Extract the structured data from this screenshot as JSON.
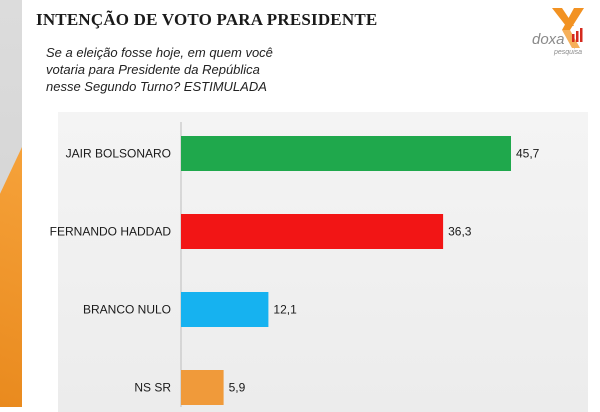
{
  "header": {
    "title": "INTENÇÃO DE VOTO PARA PRESIDENTE",
    "subtitle_lines": [
      "Se a eleição fosse hoje, em quem você",
      "votaria para Presidente da República",
      "nesse Segundo Turno? ESTIMULADA"
    ]
  },
  "logo": {
    "brand": "doxa",
    "tagline": "pesquisa",
    "colors": {
      "orange": "#f29222",
      "gray": "#8a8a8a",
      "red": "#d42a1e"
    }
  },
  "chart_data": {
    "type": "bar",
    "orientation": "horizontal",
    "categories": [
      "JAIR BOLSONARO",
      "FERNANDO HADDAD",
      "BRANCO NULO",
      "NS SR"
    ],
    "values": [
      45.7,
      36.3,
      12.1,
      5.9
    ],
    "value_labels": [
      "45,7",
      "36,3",
      "12,1",
      "5,9"
    ],
    "colors": [
      "#1fa84c",
      "#f21515",
      "#16b2f0",
      "#f09a3a"
    ],
    "xlim": [
      0,
      50
    ],
    "grid": false,
    "legend": false
  }
}
